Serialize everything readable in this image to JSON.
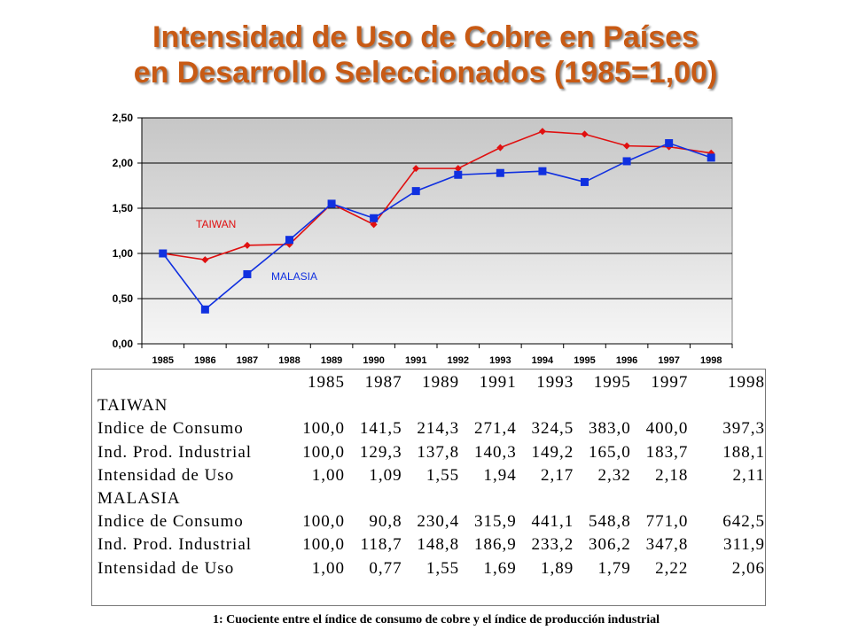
{
  "title_line1": "Intensidad de Uso de Cobre en Países",
  "title_line2": "en Desarrollo Seleccionados (1985=1,00)",
  "chart_data": {
    "type": "line",
    "x": [
      "1985",
      "1986",
      "1987",
      "1988",
      "1989",
      "1990",
      "1991",
      "1992",
      "1993",
      "1994",
      "1995",
      "1996",
      "1997",
      "1998"
    ],
    "ylim": [
      0,
      2.5
    ],
    "yticks": [
      0,
      0.5,
      1.0,
      1.5,
      2.0,
      2.5
    ],
    "ytick_labels": [
      "0,00",
      "0,50",
      "1,00",
      "1,50",
      "2,00",
      "2,50"
    ],
    "grid": true,
    "series": [
      {
        "name": "TAIWAN",
        "color": "#e01010",
        "marker": "diamond",
        "values": [
          1.0,
          0.93,
          1.09,
          1.1,
          1.55,
          1.32,
          1.94,
          1.94,
          2.17,
          2.35,
          2.32,
          2.19,
          2.18,
          2.11
        ]
      },
      {
        "name": "MALASIA",
        "color": "#1030e0",
        "marker": "square",
        "values": [
          1.0,
          0.38,
          0.77,
          1.15,
          1.55,
          1.39,
          1.69,
          1.87,
          1.89,
          1.91,
          1.79,
          2.02,
          2.22,
          2.06
        ]
      }
    ]
  },
  "table": {
    "header": [
      "",
      "1985",
      "1987",
      "1989",
      "1991",
      "1993",
      "1995",
      "1997",
      "1998"
    ],
    "rows": [
      [
        "TAIWAN",
        "",
        "",
        "",
        "",
        "",
        "",
        "",
        ""
      ],
      [
        "Indice de Consumo",
        "100,0",
        "141,5",
        "214,3",
        "271,4",
        "324,5",
        "383,0",
        "400,0",
        "397,3"
      ],
      [
        "Ind. Prod. Industrial",
        "100,0",
        "129,3",
        "137,8",
        "140,3",
        "149,2",
        "165,0",
        "183,7",
        "188,1"
      ],
      [
        "Intensidad de Uso",
        "1,00",
        "1,09",
        "1,55",
        "1,94",
        "2,17",
        "2,32",
        "2,18",
        "2,11"
      ],
      [
        "MALASIA",
        "",
        "",
        "",
        "",
        "",
        "",
        "",
        ""
      ],
      [
        "Indice de Consumo",
        "100,0",
        "90,8",
        "230,4",
        "315,9",
        "441,1",
        "548,8",
        "771,0",
        "642,5"
      ],
      [
        "Ind. Prod. Industrial",
        "100,0",
        "118,7",
        "148,8",
        "186,9",
        "233,2",
        "306,2",
        "347,8",
        "311,9"
      ],
      [
        "Intensidad de Uso",
        "1,00",
        "0,77",
        "1,55",
        "1,69",
        "1,89",
        "1,79",
        "2,22",
        "2,06"
      ]
    ]
  },
  "footnote": "1: Cuociente entre el índice de consumo de cobre y el índice de producción industrial"
}
